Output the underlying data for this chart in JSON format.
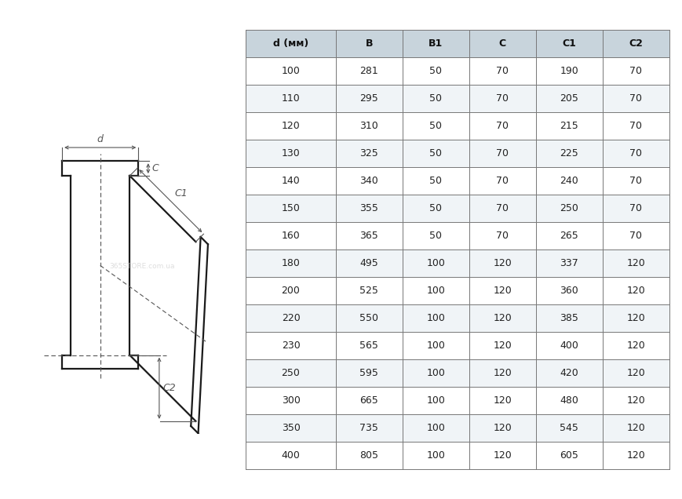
{
  "table_headers": [
    "d (мм)",
    "B",
    "B1",
    "C",
    "C1",
    "C2"
  ],
  "table_data": [
    [
      "100",
      "281",
      "50",
      "70",
      "190",
      "70"
    ],
    [
      "110",
      "295",
      "50",
      "70",
      "205",
      "70"
    ],
    [
      "120",
      "310",
      "50",
      "70",
      "215",
      "70"
    ],
    [
      "130",
      "325",
      "50",
      "70",
      "225",
      "70"
    ],
    [
      "140",
      "340",
      "50",
      "70",
      "240",
      "70"
    ],
    [
      "150",
      "355",
      "50",
      "70",
      "250",
      "70"
    ],
    [
      "160",
      "365",
      "50",
      "70",
      "265",
      "70"
    ],
    [
      "180",
      "495",
      "100",
      "120",
      "337",
      "120"
    ],
    [
      "200",
      "525",
      "100",
      "120",
      "360",
      "120"
    ],
    [
      "220",
      "550",
      "100",
      "120",
      "385",
      "120"
    ],
    [
      "230",
      "565",
      "100",
      "120",
      "400",
      "120"
    ],
    [
      "250",
      "595",
      "100",
      "120",
      "420",
      "120"
    ],
    [
      "300",
      "665",
      "100",
      "120",
      "480",
      "120"
    ],
    [
      "350",
      "735",
      "100",
      "120",
      "545",
      "120"
    ],
    [
      "400",
      "805",
      "100",
      "120",
      "605",
      "120"
    ]
  ],
  "bg_color": "#ffffff",
  "header_bg": "#c8d4dc",
  "row_bg_odd": "#ffffff",
  "row_bg_even": "#f0f4f7",
  "border_color": "#777777",
  "text_color": "#222222",
  "header_text_color": "#111111",
  "watermark_text": "365STORE.com.ua",
  "watermark_color": "#c8c8c8"
}
